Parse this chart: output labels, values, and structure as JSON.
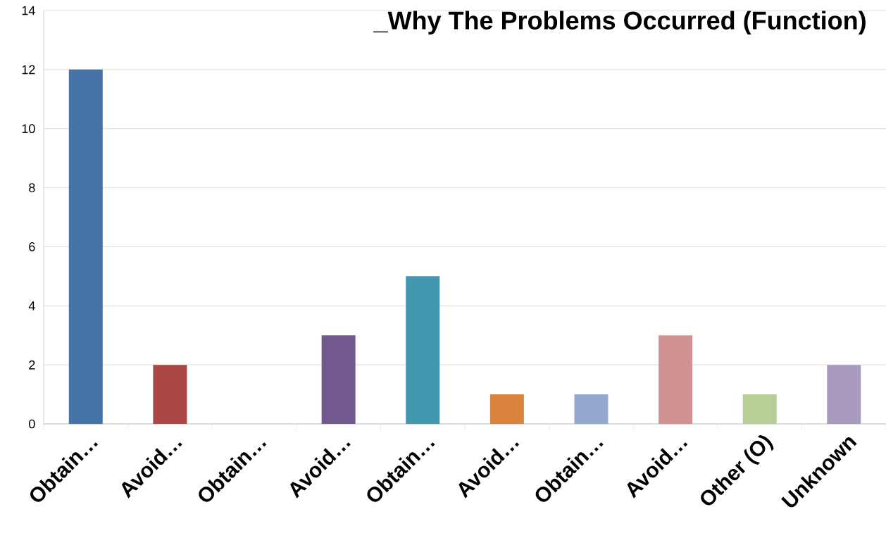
{
  "chart_data": {
    "type": "bar",
    "title": "_Why The Problems Occurred (Function)",
    "categories": [
      "Obtain…",
      "Avoid…",
      "Obtain…",
      "Avoid…",
      "Obtain…",
      "Avoid…",
      "Obtain…",
      "Avoid…",
      "Other (O)",
      "Unknown"
    ],
    "values": [
      12,
      2,
      0,
      3,
      5,
      1,
      1,
      3,
      1,
      2
    ],
    "colors": [
      "#4572a7",
      "#aa4643",
      "#89a54e",
      "#71588f",
      "#4198af",
      "#db843d",
      "#93a9cf",
      "#d19392",
      "#b9cd96",
      "#a99bbd"
    ],
    "ylim": [
      0,
      14
    ],
    "yticks": [
      0,
      2,
      4,
      6,
      8,
      10,
      12,
      14
    ],
    "grid": "y"
  }
}
